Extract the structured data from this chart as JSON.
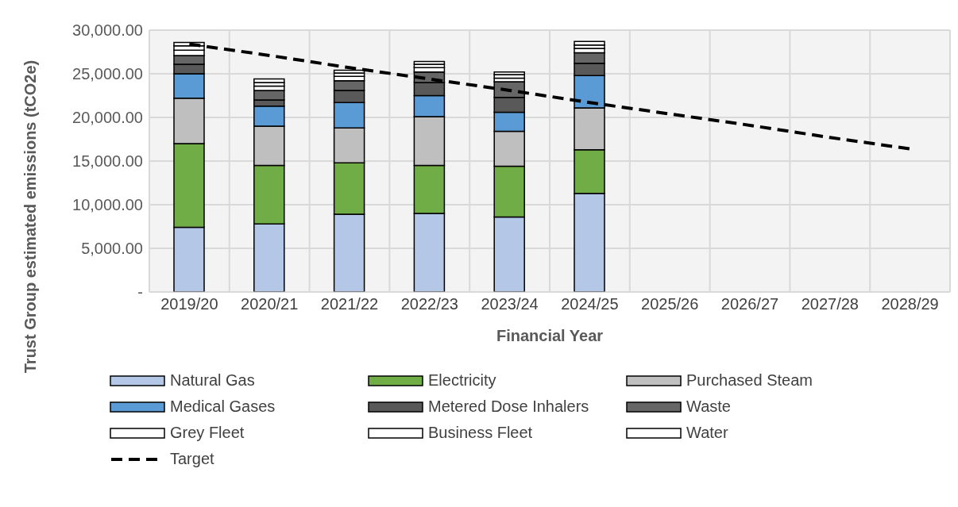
{
  "chart_data": {
    "type": "bar",
    "stacked": true,
    "xlabel": "Financial Year",
    "ylabel": "Trust Group estimated emissions (tCO2e)",
    "categories": [
      "2019/20",
      "2020/21",
      "2021/22",
      "2022/23",
      "2023/24",
      "2024/25",
      "2025/26",
      "2026/27",
      "2027/28",
      "2028/29"
    ],
    "series": [
      {
        "name": "Natural Gas",
        "color": "#b4c7e7",
        "values": [
          7400,
          7800,
          8900,
          9000,
          8600,
          11300,
          null,
          null,
          null,
          null
        ]
      },
      {
        "name": "Electricity",
        "color": "#70ad47",
        "values": [
          9600,
          6700,
          5900,
          5500,
          5800,
          5000,
          null,
          null,
          null,
          null
        ]
      },
      {
        "name": "Purchased Steam",
        "color": "#bfbfbf",
        "values": [
          5200,
          4500,
          4000,
          5600,
          4000,
          4800,
          null,
          null,
          null,
          null
        ]
      },
      {
        "name": "Medical Gases",
        "color": "#5b9bd5",
        "values": [
          2800,
          2300,
          2900,
          2400,
          2200,
          3700,
          null,
          null,
          null,
          null
        ]
      },
      {
        "name": "Metered Dose Inhalers",
        "color": "#595959",
        "values": [
          1100,
          700,
          1400,
          1500,
          1700,
          1400,
          null,
          null,
          null,
          null
        ]
      },
      {
        "name": "Waste",
        "color": "#666666",
        "values": [
          1000,
          1100,
          1100,
          1200,
          1800,
          1200,
          null,
          null,
          null,
          null
        ]
      },
      {
        "name": "Grey Fleet",
        "color": "#ffffff",
        "values": [
          600,
          500,
          500,
          500,
          400,
          500,
          null,
          null,
          null,
          null
        ]
      },
      {
        "name": "Business Fleet",
        "color": "#ffffff",
        "values": [
          500,
          400,
          400,
          400,
          400,
          400,
          null,
          null,
          null,
          null
        ]
      },
      {
        "name": "Water",
        "color": "#ffffff",
        "values": [
          400,
          400,
          300,
          300,
          300,
          400,
          null,
          null,
          null,
          null
        ]
      },
      {
        "name": "Target",
        "type": "line",
        "color": "#000000",
        "line_style": "dashed",
        "values": [
          28400,
          27100,
          25700,
          24400,
          23100,
          21700,
          20400,
          19100,
          17700,
          16400
        ]
      }
    ],
    "ylim": [
      0,
      30000
    ],
    "yticks": [
      {
        "value": 0,
        "label": "-"
      },
      {
        "value": 5000,
        "label": "5,000.00"
      },
      {
        "value": 10000,
        "label": "10,000.00"
      },
      {
        "value": 15000,
        "label": "15,000.00"
      },
      {
        "value": 20000,
        "label": "20,000.00"
      },
      {
        "value": 25000,
        "label": "25,000.00"
      },
      {
        "value": 30000,
        "label": "30,000.00"
      }
    ],
    "grid": true,
    "legend": "bottom"
  }
}
